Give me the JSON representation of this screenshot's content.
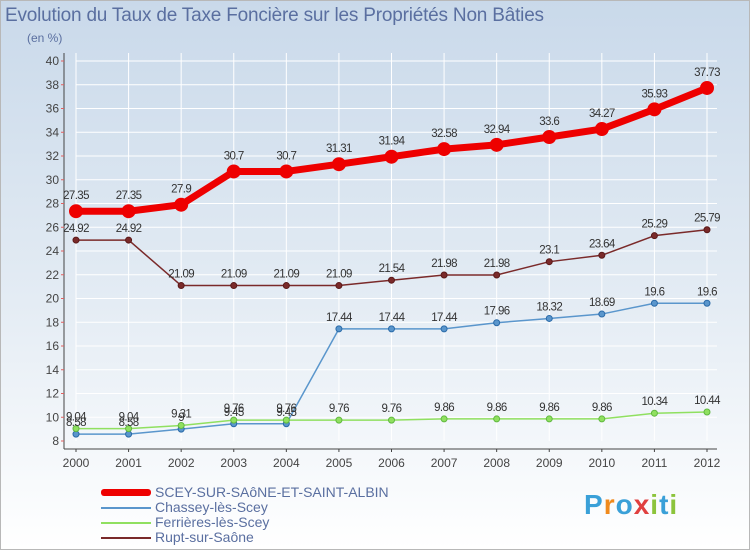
{
  "title": "Evolution du Taux de Taxe Foncière sur les Propriétés Non Bâties",
  "subtitle": "(en %)",
  "logo_text": "Proxiti",
  "colors": {
    "series1": "#ee0000",
    "series2": "#5a96cc",
    "series3": "#90e060",
    "series4": "#7a2a2a",
    "text": "#5a6fa0",
    "axis": "#444444",
    "grid": "#ffffff"
  },
  "chart_data": {
    "type": "line",
    "title": "Evolution du Taux de Taxe Foncière sur les Propriétés Non Bâties",
    "ylabel": "(en %)",
    "xlabel": "",
    "ylim": [
      8,
      40
    ],
    "y_ticks": [
      8,
      10,
      12,
      14,
      16,
      18,
      20,
      22,
      24,
      26,
      28,
      30,
      32,
      34,
      36,
      38,
      40
    ],
    "categories": [
      "2000",
      "2001",
      "2002",
      "2003",
      "2004",
      "2005",
      "2006",
      "2007",
      "2008",
      "2009",
      "2010",
      "2011",
      "2012"
    ],
    "series": [
      {
        "name": "SCEY-SUR-SAôNE-ET-SAINT-ALBIN",
        "values": [
          27.35,
          27.35,
          27.9,
          30.7,
          30.7,
          31.31,
          31.94,
          32.58,
          32.94,
          33.6,
          34.27,
          35.93,
          37.73
        ],
        "labels": [
          "27.35",
          "27.35",
          "27.9",
          "30.7",
          "30.7",
          "31.31",
          "31.94",
          "32.58",
          "32.94",
          "33.6",
          "34.27",
          "35.93",
          "37.73"
        ]
      },
      {
        "name": "Chassey-lès-Scey",
        "values": [
          8.58,
          8.58,
          9,
          9.45,
          9.45,
          17.44,
          17.44,
          17.44,
          17.96,
          18.32,
          18.69,
          19.6,
          19.6
        ],
        "labels": [
          "8.58",
          "8.58",
          "9",
          "9.45",
          "9.45",
          "17.44",
          "17.44",
          "17.44",
          "17.96",
          "18.32",
          "18.69",
          "19.6",
          "19.6"
        ]
      },
      {
        "name": "Ferrières-lès-Scey",
        "values": [
          9.04,
          9.04,
          9.31,
          9.76,
          9.76,
          9.76,
          9.76,
          9.86,
          9.86,
          9.86,
          9.86,
          10.34,
          10.44
        ],
        "labels": [
          "9.04",
          "9.04",
          "9.31",
          "9.76",
          "9.76",
          "9.76",
          "9.76",
          "9.86",
          "9.86",
          "9.86",
          "9.86",
          "10.34",
          "10.44"
        ]
      },
      {
        "name": "Rupt-sur-Saône",
        "values": [
          24.92,
          24.92,
          21.09,
          21.09,
          21.09,
          21.09,
          21.54,
          21.98,
          21.98,
          23.1,
          23.64,
          25.29,
          25.79
        ],
        "labels": [
          "24.92",
          "24.92",
          "21.09",
          "21.09",
          "21.09",
          "21.09",
          "21.54",
          "21.98",
          "21.98",
          "23.1",
          "23.64",
          "25.29",
          "25.79"
        ]
      }
    ],
    "legend": [
      "SCEY-SUR-SAôNE-ET-SAINT-ALBIN",
      "Chassey-lès-Scey",
      "Ferrières-lès-Scey",
      "Rupt-sur-Saône"
    ],
    "legend_position": "bottom-left",
    "grid": true
  }
}
